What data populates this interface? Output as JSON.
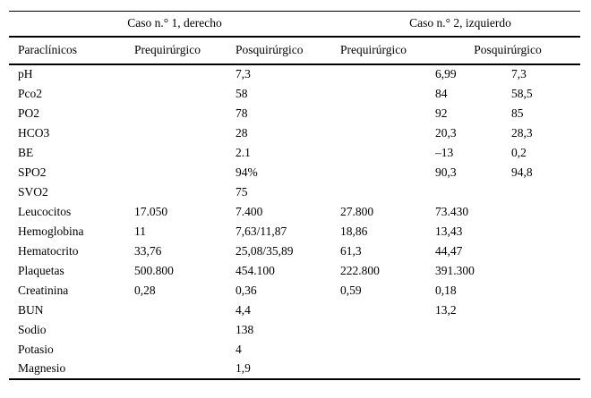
{
  "page": {
    "background_color": "#ffffff",
    "text_color": "#000000"
  },
  "table": {
    "group_headers": {
      "caso1": "Caso n.° 1, derecho",
      "caso2": "Caso n.° 2, izquierdo"
    },
    "column_headers": {
      "parameter": "Paraclínicos",
      "caso1_pre": "Prequirúrgico",
      "caso1_post": "Posquirúrgico",
      "caso2_pre": "Prequirúrgico",
      "caso2_post": "Posquirúrgico"
    },
    "rows": [
      [
        "pH",
        "",
        "7,3",
        "",
        "6,99",
        "7,3"
      ],
      [
        "Pco2",
        "",
        "58",
        "",
        "84",
        "58,5"
      ],
      [
        "PO2",
        "",
        "78",
        "",
        "92",
        "85"
      ],
      [
        "HCO3",
        "",
        "28",
        "",
        "20,3",
        "28,3"
      ],
      [
        "BE",
        "",
        "2.1",
        "",
        "–13",
        "0,2"
      ],
      [
        "SPO2",
        "",
        "94%",
        "",
        "90,3",
        "94,8"
      ],
      [
        "SVO2",
        "",
        "75",
        "",
        "",
        ""
      ],
      [
        "Leucocitos",
        "17.050",
        "7.400",
        "27.800",
        "73.430",
        ""
      ],
      [
        "Hemoglobina",
        "11",
        "7,63/11,87",
        "18,86",
        "13,43",
        ""
      ],
      [
        "Hematocrito",
        "33,76",
        "25,08/35,89",
        "61,3",
        "44,47",
        ""
      ],
      [
        "Plaquetas",
        "500.800",
        "454.100",
        "222.800",
        "391.300",
        ""
      ],
      [
        "Creatinina",
        "0,28",
        "0,36",
        "0,59",
        "0,18",
        ""
      ],
      [
        "BUN",
        "",
        "4,4",
        "",
        "13,2",
        ""
      ],
      [
        "Sodio",
        "",
        "138",
        "",
        "",
        ""
      ],
      [
        "Potasio",
        "",
        "4",
        "",
        "",
        ""
      ],
      [
        "Magnesio",
        "",
        "1,9",
        "",
        "",
        ""
      ]
    ]
  }
}
